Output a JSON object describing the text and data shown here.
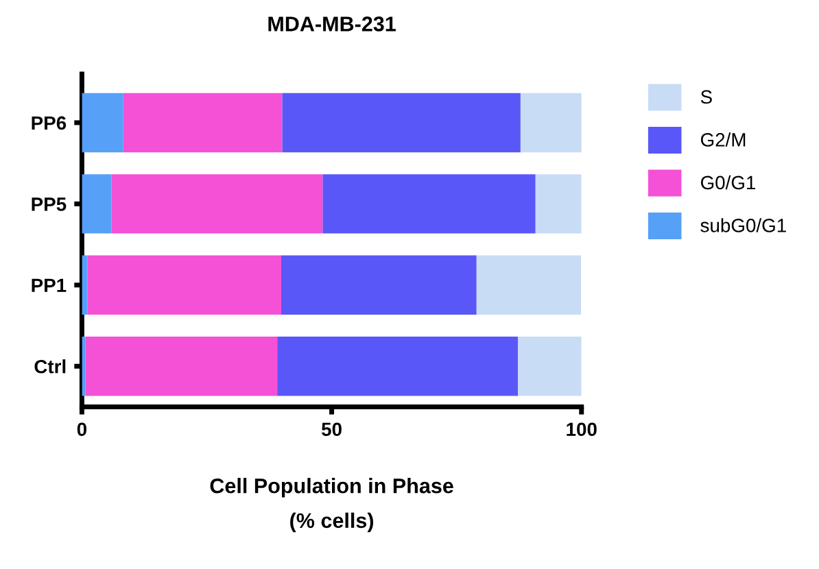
{
  "chart_data": {
    "type": "bar",
    "orientation": "horizontal",
    "stacked": true,
    "title": "MDA-MB-231",
    "xlabel": "Cell Population in Phase\n(% cells)",
    "categories": [
      "PP6",
      "PP5",
      "PP1",
      "Ctrl"
    ],
    "series": [
      {
        "name": "subG0/G1",
        "color": "#56a0f8",
        "values": [
          8.3,
          5.9,
          1.1,
          0.7
        ]
      },
      {
        "name": "G0/G1",
        "color": "#f451d6",
        "values": [
          31.8,
          42.3,
          38.8,
          38.4
        ]
      },
      {
        "name": "G2/M",
        "color": "#5a57f8",
        "values": [
          47.7,
          42.6,
          39.1,
          48.2
        ]
      },
      {
        "name": "S",
        "color": "#c9dcf6",
        "values": [
          12.3,
          9.2,
          20.9,
          12.7
        ]
      }
    ],
    "xlim": [
      0,
      100
    ],
    "xticks": [
      0,
      50,
      100
    ],
    "grid": false,
    "legend": "right"
  }
}
